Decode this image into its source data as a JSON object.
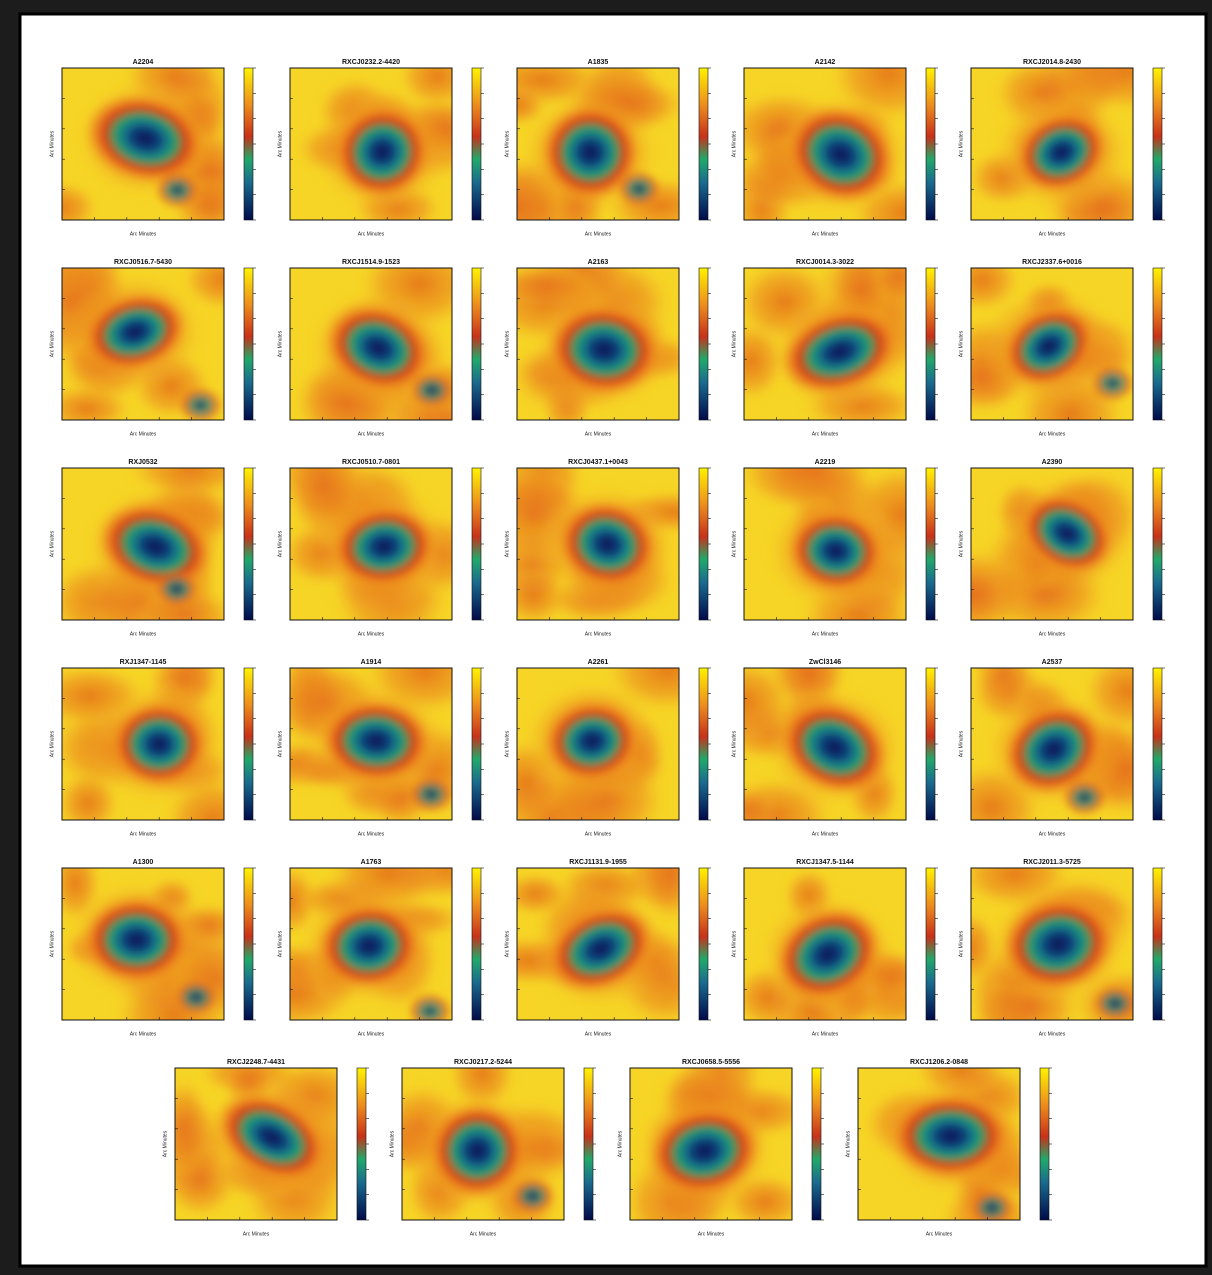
{
  "figure": {
    "panels": [
      {
        "title": "A2204",
        "xlabel": "Arc Minutes",
        "ylabel": "Arc Minutes"
      },
      {
        "title": "RXCJ0232.2-4420",
        "xlabel": "Arc Minutes",
        "ylabel": "Arc Minutes"
      },
      {
        "title": "A1835",
        "xlabel": "Arc Minutes",
        "ylabel": "Arc Minutes"
      },
      {
        "title": "A2142",
        "xlabel": "Arc Minutes",
        "ylabel": "Arc Minutes"
      },
      {
        "title": "RXCJ2014.8-2430",
        "xlabel": "Arc Minutes",
        "ylabel": "Arc Minutes"
      },
      {
        "title": "RXCJ0516.7-5430",
        "xlabel": "Arc Minutes",
        "ylabel": "Arc Minutes"
      },
      {
        "title": "RXCJ1514.9-1523",
        "xlabel": "Arc Minutes",
        "ylabel": "Arc Minutes"
      },
      {
        "title": "A2163",
        "xlabel": "Arc Minutes",
        "ylabel": "Arc Minutes"
      },
      {
        "title": "RXCJ0014.3-3022",
        "xlabel": "Arc Minutes",
        "ylabel": "Arc Minutes"
      },
      {
        "title": "RXCJ2337.6+0016",
        "xlabel": "Arc Minutes",
        "ylabel": "Arc Minutes"
      },
      {
        "title": "RXJ0532",
        "xlabel": "Arc Minutes",
        "ylabel": "Arc Minutes"
      },
      {
        "title": "RXCJ0510.7-0801",
        "xlabel": "Arc Minutes",
        "ylabel": "Arc Minutes"
      },
      {
        "title": "RXCJ0437.1+0043",
        "xlabel": "Arc Minutes",
        "ylabel": "Arc Minutes"
      },
      {
        "title": "A2219",
        "xlabel": "Arc Minutes",
        "ylabel": "Arc Minutes"
      },
      {
        "title": "A2390",
        "xlabel": "Arc Minutes",
        "ylabel": "Arc Minutes"
      },
      {
        "title": "RXJ1347-1145",
        "xlabel": "Arc Minutes",
        "ylabel": "Arc Minutes"
      },
      {
        "title": "A1914",
        "xlabel": "Arc Minutes",
        "ylabel": "Arc Minutes"
      },
      {
        "title": "A2261",
        "xlabel": "Arc Minutes",
        "ylabel": "Arc Minutes"
      },
      {
        "title": "ZwCl3146",
        "xlabel": "Arc Minutes",
        "ylabel": "Arc Minutes"
      },
      {
        "title": "A2537",
        "xlabel": "Arc Minutes",
        "ylabel": "Arc Minutes"
      },
      {
        "title": "A1300",
        "xlabel": "Arc Minutes",
        "ylabel": "Arc Minutes"
      },
      {
        "title": "A1763",
        "xlabel": "Arc Minutes",
        "ylabel": "Arc Minutes"
      },
      {
        "title": "RXCJ1131.9-1955",
        "xlabel": "Arc Minutes",
        "ylabel": "Arc Minutes"
      },
      {
        "title": "RXCJ1347.5-1144",
        "xlabel": "Arc Minutes",
        "ylabel": "Arc Minutes"
      },
      {
        "title": "RXCJ2011.3-5725",
        "xlabel": "Arc Minutes",
        "ylabel": "Arc Minutes"
      },
      {
        "title": "RXCJ2248.7-4431",
        "xlabel": "Arc Minutes",
        "ylabel": "Arc Minutes"
      },
      {
        "title": "RXCJ0217.2-5244",
        "xlabel": "Arc Minutes",
        "ylabel": "Arc Minutes"
      },
      {
        "title": "RXCJ0658.5-5556",
        "xlabel": "Arc Minutes",
        "ylabel": "Arc Minutes"
      },
      {
        "title": "RXCJ1206.2-0848",
        "xlabel": "Arc Minutes",
        "ylabel": "Arc Minutes"
      }
    ]
  }
}
